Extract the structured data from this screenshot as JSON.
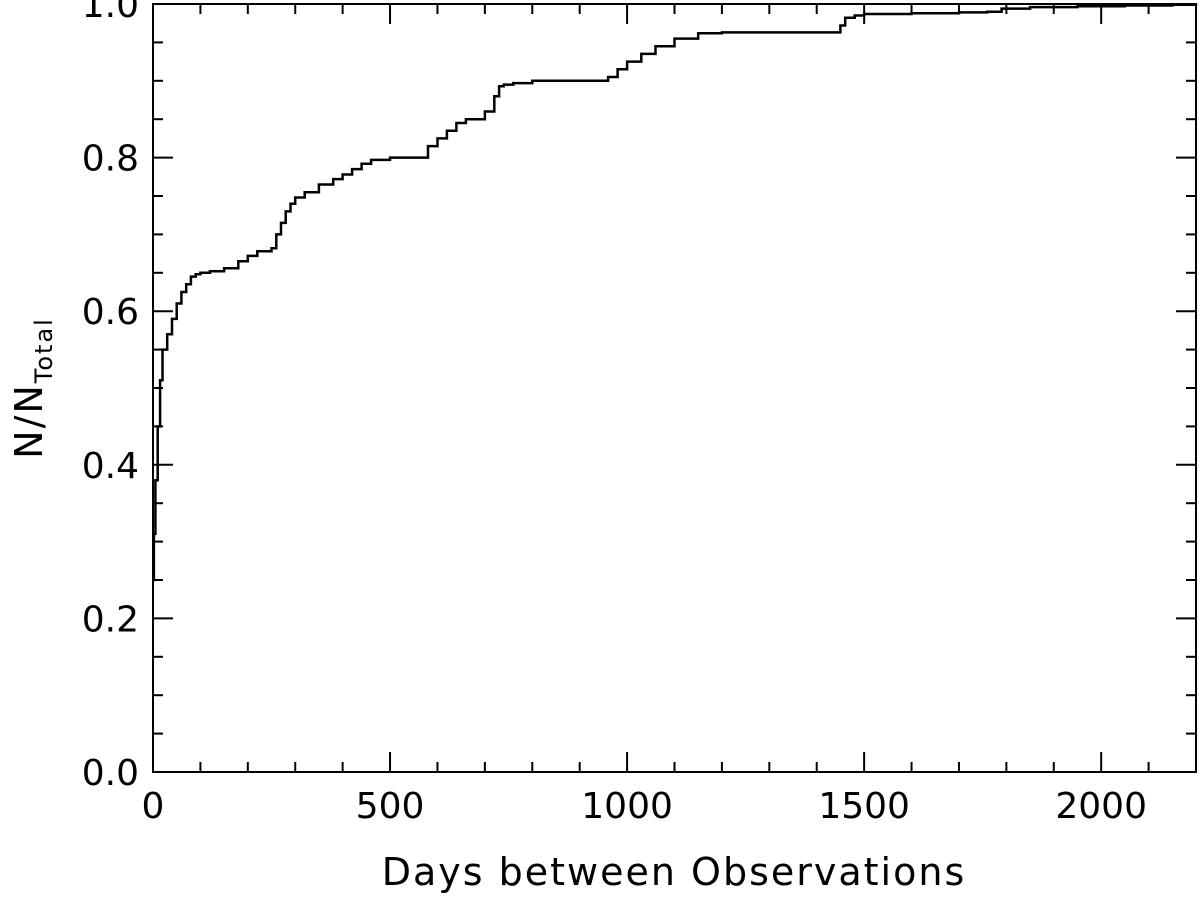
{
  "chart_data": {
    "type": "line",
    "title": "",
    "xlabel": "Days between Observations",
    "ylabel_main": "N/N",
    "ylabel_sub": "Total",
    "xlim": [
      0,
      2200
    ],
    "ylim": [
      0.0,
      1.0
    ],
    "x_ticks": [
      0,
      500,
      1000,
      1500,
      2000
    ],
    "x_tick_labels": [
      "0",
      "500",
      "1000",
      "1500",
      "2000"
    ],
    "x_minor_step": 100,
    "y_ticks": [
      0.0,
      0.2,
      0.4,
      0.6,
      0.8,
      1.0
    ],
    "y_tick_labels": [
      "0.0",
      "0.2",
      "0.4",
      "0.6",
      "0.8",
      "1.0"
    ],
    "y_minor_step": 0.05,
    "grid": false,
    "legend": "none",
    "series": [
      {
        "color": "#000000",
        "step": true,
        "x": [
          0,
          2,
          5,
          10,
          15,
          20,
          30,
          40,
          50,
          60,
          70,
          80,
          90,
          100,
          120,
          150,
          180,
          200,
          220,
          250,
          260,
          270,
          280,
          290,
          300,
          320,
          350,
          380,
          400,
          420,
          440,
          460,
          500,
          550,
          580,
          600,
          620,
          640,
          660,
          700,
          720,
          730,
          740,
          760,
          800,
          850,
          900,
          960,
          980,
          1000,
          1030,
          1060,
          1100,
          1150,
          1200,
          1300,
          1400,
          1450,
          1460,
          1480,
          1500,
          1600,
          1700,
          1760,
          1790,
          1850,
          1950,
          2050,
          2150,
          2200
        ],
        "y": [
          0.25,
          0.31,
          0.38,
          0.45,
          0.51,
          0.55,
          0.57,
          0.59,
          0.61,
          0.625,
          0.635,
          0.645,
          0.648,
          0.65,
          0.652,
          0.656,
          0.665,
          0.672,
          0.678,
          0.682,
          0.7,
          0.715,
          0.73,
          0.74,
          0.748,
          0.755,
          0.765,
          0.772,
          0.778,
          0.785,
          0.792,
          0.797,
          0.8,
          0.8,
          0.815,
          0.825,
          0.835,
          0.845,
          0.85,
          0.86,
          0.88,
          0.893,
          0.895,
          0.897,
          0.9,
          0.9,
          0.9,
          0.905,
          0.915,
          0.925,
          0.935,
          0.945,
          0.955,
          0.962,
          0.963,
          0.963,
          0.963,
          0.972,
          0.982,
          0.985,
          0.987,
          0.988,
          0.989,
          0.99,
          0.994,
          0.996,
          0.997,
          0.998,
          0.999,
          1.0
        ]
      }
    ]
  }
}
